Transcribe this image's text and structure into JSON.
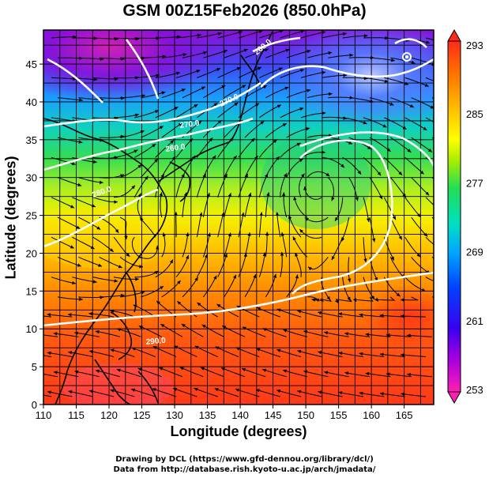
{
  "title": "GSM 00Z15Feb2026 (850.0hPa)",
  "xlabel": "Longitude (degrees)",
  "ylabel": "Latitude  (degrees)",
  "x_ticks": [
    "110",
    "115",
    "120",
    "125",
    "130",
    "135",
    "140",
    "145",
    "150",
    "155",
    "160",
    "165"
  ],
  "y_ticks": [
    "0",
    "5",
    "10",
    "15",
    "20",
    "25",
    "30",
    "35",
    "40",
    "45"
  ],
  "colorbar": {
    "ticks": [
      "293",
      "285",
      "277",
      "269",
      "261",
      "253"
    ],
    "colors": [
      "#ff1eb4",
      "#aa00dd",
      "#3a00ee",
      "#0044ff",
      "#00b0ff",
      "#00e0c0",
      "#22dd66",
      "#aaee00",
      "#ffff00",
      "#ffb400",
      "#ff6a00",
      "#ff2a1a"
    ]
  },
  "contour_labels": [
    "290.0",
    "280.0",
    "260.0",
    "270.0",
    "260.0",
    "270.0"
  ],
  "credit_line1": "Drawing by DCL (https://www.gfd-dennou.org/library/dcl/)",
  "credit_line2": "Data from http://database.rish.kyoto-u.ac.jp/arch/jmadata/"
}
